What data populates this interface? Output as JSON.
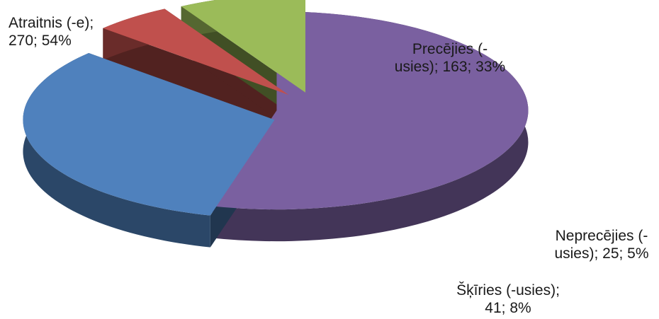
{
  "chart_data": {
    "type": "pie",
    "title": "",
    "style": "3d-exploded",
    "slices": [
      {
        "label_line1": "Atraitnis (-e);",
        "label_line2": "270; 54%",
        "category": "Atraitnis (-e)",
        "value": 270,
        "percent": 54,
        "color": "#7a60a0"
      },
      {
        "label_line1": "Precējies (-",
        "label_line2": "usies); 163; 33%",
        "category": "Precējies (-usies)",
        "value": 163,
        "percent": 33,
        "color": "#4f81bd"
      },
      {
        "label_line1": "Neprecējies (-",
        "label_line2": "usies); 25; 5%",
        "category": "Neprecējies (-usies)",
        "value": 25,
        "percent": 5,
        "color": "#c0504d"
      },
      {
        "label_line1": "Šķīries (-usies);",
        "label_line2": "41; 8%",
        "category": "Šķīries (-usies)",
        "value": 41,
        "percent": 8,
        "color": "#9bbb59"
      }
    ]
  }
}
